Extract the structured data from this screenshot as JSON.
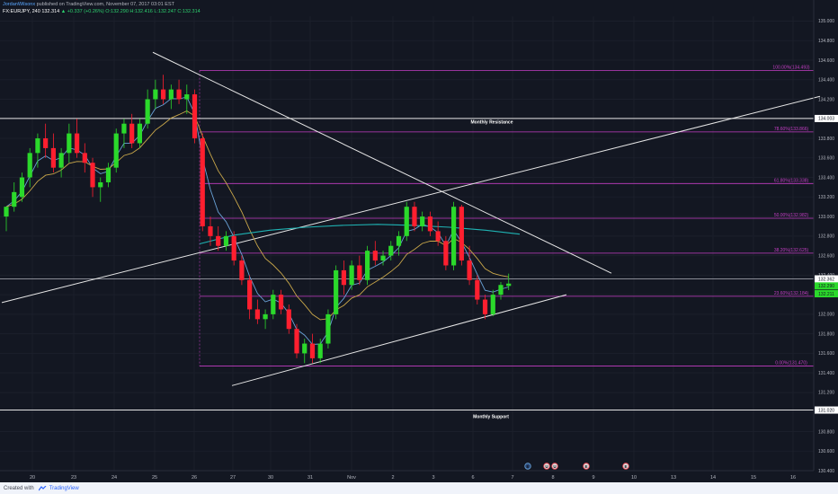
{
  "header": {
    "author": "JordanWilsonx",
    "publish_text": "published on TradingView.com, November 07, 2017 03:01 EST",
    "symbol": "FX:EURJPY, 240",
    "last": "132.314",
    "change": "▲ +0.337 (+0.26%)",
    "ohlc": "O:132.290  H:132.416  L:132.247  C:132.314"
  },
  "footer": {
    "created_with": "Created with",
    "brand": "TradingView"
  },
  "colors": {
    "background": "#131722",
    "bull": "#2bd92b",
    "bear": "#ff1f2f",
    "fib": "#c43ec4",
    "ema_fast": "#6aa3d8",
    "ema_slow": "#c9a74a",
    "ma_long": "#1fb3b3",
    "trendline": "#e6e6e6"
  },
  "chart_data": {
    "type": "candlestick",
    "title": "",
    "ylim": [
      130.4,
      135.05
    ],
    "y_ticks": [
      "135.000",
      "134.800",
      "134.600",
      "134.400",
      "134.200",
      "134.000",
      "133.800",
      "133.600",
      "133.400",
      "133.200",
      "133.000",
      "132.800",
      "132.600",
      "132.400",
      "132.200",
      "132.000",
      "131.800",
      "131.600",
      "131.400",
      "131.200",
      "131.000",
      "130.800",
      "130.600",
      "130.400"
    ],
    "x_ticks": [
      "20",
      "23",
      "24",
      "25",
      "26",
      "27",
      "30",
      "31",
      "Nov",
      "2",
      "3",
      "6",
      "7",
      "8",
      "9",
      "10",
      "13",
      "14",
      "15",
      "16"
    ],
    "levels": {
      "monthly_resistance": {
        "label": "Monthly Resistance",
        "value": 134.003,
        "tag": "134.003"
      },
      "monthly_support": {
        "label": "Monthly Support",
        "value": 131.02,
        "tag": "131.020"
      },
      "current_price": {
        "value": 132.362,
        "tag": "132.362"
      }
    },
    "fibonacci": [
      {
        "label": "100.00%(134.493)",
        "value": 134.493
      },
      {
        "label": "78.60%(133.866)",
        "value": 133.866
      },
      {
        "label": "61.80%(133.338)",
        "value": 133.338
      },
      {
        "label": "50.00%(132.982)",
        "value": 132.982
      },
      {
        "label": "38.20%(132.625)",
        "value": 132.625
      },
      {
        "label": "23.60%(132.184)",
        "value": 132.184
      },
      {
        "label": "0.00%(131.470)",
        "value": 131.47
      }
    ],
    "price_tags": [
      {
        "value": 132.29,
        "tag": "132.290"
      },
      {
        "value": 132.21,
        "tag": "132.211"
      }
    ],
    "candles": [
      {
        "o": 133.0,
        "h": 133.1,
        "l": 132.85,
        "c": 133.1
      },
      {
        "o": 133.1,
        "h": 133.35,
        "l": 133.05,
        "c": 133.25
      },
      {
        "o": 133.2,
        "h": 133.45,
        "l": 133.15,
        "c": 133.4
      },
      {
        "o": 133.4,
        "h": 133.7,
        "l": 133.3,
        "c": 133.65
      },
      {
        "o": 133.65,
        "h": 133.85,
        "l": 133.5,
        "c": 133.8
      },
      {
        "o": 133.8,
        "h": 133.95,
        "l": 133.6,
        "c": 133.7
      },
      {
        "o": 133.7,
        "h": 133.85,
        "l": 133.45,
        "c": 133.5
      },
      {
        "o": 133.5,
        "h": 133.7,
        "l": 133.4,
        "c": 133.65
      },
      {
        "o": 133.65,
        "h": 133.95,
        "l": 133.55,
        "c": 133.85
      },
      {
        "o": 133.85,
        "h": 134.0,
        "l": 133.6,
        "c": 133.65
      },
      {
        "o": 133.65,
        "h": 133.75,
        "l": 133.45,
        "c": 133.55
      },
      {
        "o": 133.55,
        "h": 133.6,
        "l": 133.2,
        "c": 133.3
      },
      {
        "o": 133.3,
        "h": 133.4,
        "l": 133.15,
        "c": 133.35
      },
      {
        "o": 133.35,
        "h": 133.55,
        "l": 133.3,
        "c": 133.5
      },
      {
        "o": 133.5,
        "h": 133.9,
        "l": 133.45,
        "c": 133.85
      },
      {
        "o": 133.85,
        "h": 134.0,
        "l": 133.7,
        "c": 133.95
      },
      {
        "o": 133.95,
        "h": 134.05,
        "l": 133.7,
        "c": 133.75
      },
      {
        "o": 133.75,
        "h": 134.0,
        "l": 133.7,
        "c": 133.95
      },
      {
        "o": 133.95,
        "h": 134.3,
        "l": 133.9,
        "c": 134.2
      },
      {
        "o": 134.2,
        "h": 134.4,
        "l": 134.1,
        "c": 134.3
      },
      {
        "o": 134.3,
        "h": 134.45,
        "l": 134.15,
        "c": 134.2
      },
      {
        "o": 134.2,
        "h": 134.35,
        "l": 134.1,
        "c": 134.3
      },
      {
        "o": 134.3,
        "h": 134.4,
        "l": 134.15,
        "c": 134.2
      },
      {
        "o": 134.2,
        "h": 134.35,
        "l": 134.05,
        "c": 134.25
      },
      {
        "o": 134.25,
        "h": 134.3,
        "l": 133.75,
        "c": 133.8
      },
      {
        "o": 133.8,
        "h": 133.85,
        "l": 132.85,
        "c": 132.9
      },
      {
        "o": 132.9,
        "h": 133.0,
        "l": 132.7,
        "c": 132.8
      },
      {
        "o": 132.8,
        "h": 132.9,
        "l": 132.65,
        "c": 132.7
      },
      {
        "o": 132.7,
        "h": 132.85,
        "l": 132.65,
        "c": 132.8
      },
      {
        "o": 132.8,
        "h": 132.85,
        "l": 132.5,
        "c": 132.55
      },
      {
        "o": 132.55,
        "h": 132.6,
        "l": 132.3,
        "c": 132.35
      },
      {
        "o": 132.35,
        "h": 132.4,
        "l": 131.95,
        "c": 132.05
      },
      {
        "o": 132.05,
        "h": 132.15,
        "l": 131.9,
        "c": 131.95
      },
      {
        "o": 131.95,
        "h": 132.05,
        "l": 131.85,
        "c": 132.0
      },
      {
        "o": 132.0,
        "h": 132.25,
        "l": 131.95,
        "c": 132.2
      },
      {
        "o": 132.2,
        "h": 132.25,
        "l": 132.0,
        "c": 132.05
      },
      {
        "o": 132.05,
        "h": 132.1,
        "l": 131.8,
        "c": 131.85
      },
      {
        "o": 131.85,
        "h": 131.9,
        "l": 131.55,
        "c": 131.6
      },
      {
        "o": 131.6,
        "h": 131.75,
        "l": 131.5,
        "c": 131.7
      },
      {
        "o": 131.7,
        "h": 131.8,
        "l": 131.5,
        "c": 131.55
      },
      {
        "o": 131.55,
        "h": 131.75,
        "l": 131.5,
        "c": 131.7
      },
      {
        "o": 131.7,
        "h": 132.05,
        "l": 131.65,
        "c": 132.0
      },
      {
        "o": 132.0,
        "h": 132.5,
        "l": 131.95,
        "c": 132.45
      },
      {
        "o": 132.45,
        "h": 132.55,
        "l": 132.2,
        "c": 132.3
      },
      {
        "o": 132.3,
        "h": 132.55,
        "l": 132.25,
        "c": 132.5
      },
      {
        "o": 132.5,
        "h": 132.6,
        "l": 132.3,
        "c": 132.35
      },
      {
        "o": 132.35,
        "h": 132.7,
        "l": 132.3,
        "c": 132.65
      },
      {
        "o": 132.65,
        "h": 132.75,
        "l": 132.5,
        "c": 132.55
      },
      {
        "o": 132.55,
        "h": 132.65,
        "l": 132.5,
        "c": 132.6
      },
      {
        "o": 132.6,
        "h": 132.75,
        "l": 132.55,
        "c": 132.7
      },
      {
        "o": 132.7,
        "h": 132.85,
        "l": 132.6,
        "c": 132.8
      },
      {
        "o": 132.8,
        "h": 133.15,
        "l": 132.75,
        "c": 133.1
      },
      {
        "o": 133.1,
        "h": 133.15,
        "l": 132.85,
        "c": 132.9
      },
      {
        "o": 132.9,
        "h": 133.05,
        "l": 132.85,
        "c": 133.0
      },
      {
        "o": 133.0,
        "h": 133.05,
        "l": 132.8,
        "c": 132.85
      },
      {
        "o": 132.85,
        "h": 132.95,
        "l": 132.7,
        "c": 132.75
      },
      {
        "o": 132.75,
        "h": 132.8,
        "l": 132.45,
        "c": 132.5
      },
      {
        "o": 132.5,
        "h": 133.15,
        "l": 132.45,
        "c": 133.1
      },
      {
        "o": 133.1,
        "h": 133.12,
        "l": 132.5,
        "c": 132.55
      },
      {
        "o": 132.55,
        "h": 132.7,
        "l": 132.3,
        "c": 132.35
      },
      {
        "o": 132.35,
        "h": 132.4,
        "l": 132.1,
        "c": 132.15
      },
      {
        "o": 132.15,
        "h": 132.2,
        "l": 131.95,
        "c": 132.0
      },
      {
        "o": 132.0,
        "h": 132.25,
        "l": 131.98,
        "c": 132.2
      },
      {
        "o": 132.2,
        "h": 132.33,
        "l": 132.15,
        "c": 132.3
      },
      {
        "o": 132.29,
        "h": 132.416,
        "l": 132.247,
        "c": 132.314
      }
    ]
  },
  "events": [
    "E",
    "U",
    "U",
    "E",
    "E"
  ]
}
